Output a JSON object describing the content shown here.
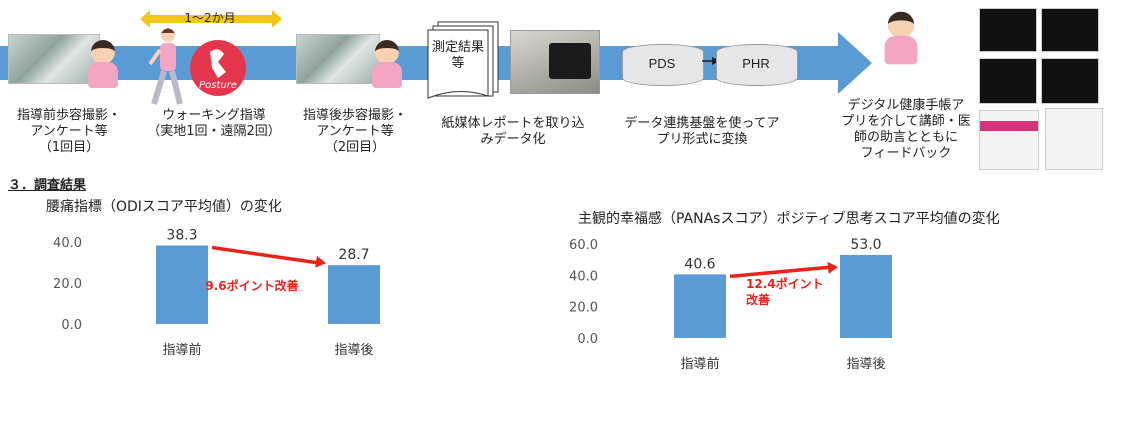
{
  "flow": {
    "duration_label": "1〜2か月",
    "logo_text": "Posture",
    "doc_label": "測定結果等",
    "pds": "PDS",
    "phr": "PHR",
    "steps": [
      "指導前歩容撮影・\nアンケート等\n（1回目）",
      "ウォーキング指導\n（実地1回・遠隔2回）",
      "指導後歩容撮影・\nアンケート等\n（2回目）",
      "紙媒体レポートを取り込\nみデータ化",
      "データ連携基盤を使ってア\nプリ形式に変換",
      "デジタル健康手帳ア\nプリを介して講師・医\n師の助言とともに\nフィードバック"
    ]
  },
  "section_title": "３．調査結果",
  "chart_data": [
    {
      "type": "bar",
      "title": "腰痛指標（ODIスコア平均値）の変化",
      "categories": [
        "指導前",
        "指導後"
      ],
      "values": [
        38.3,
        28.7
      ],
      "value_labels": [
        "38.3",
        "28.7"
      ],
      "ylim": [
        0,
        40
      ],
      "yticks": [
        "0.0",
        "20.0",
        "40.0"
      ],
      "ytick_values": [
        0,
        20,
        40
      ],
      "annotation": "9.6ポイント改善",
      "bar_color": "#5b9bd5",
      "annotation_color": "#e8231a"
    },
    {
      "type": "bar",
      "title": "主観的幸福感（PANAsスコア）ポジティブ思考スコア平均値の変化",
      "categories": [
        "指導前",
        "指導後"
      ],
      "values": [
        40.6,
        53.0
      ],
      "value_labels": [
        "40.6",
        "53.0"
      ],
      "ylim": [
        0,
        60
      ],
      "yticks": [
        "0.0",
        "20.0",
        "40.0",
        "60.0"
      ],
      "ytick_values": [
        0,
        20,
        40,
        60
      ],
      "annotation": "12.4ポイント\n改善",
      "bar_color": "#5b9bd5",
      "annotation_color": "#e8231a"
    }
  ]
}
